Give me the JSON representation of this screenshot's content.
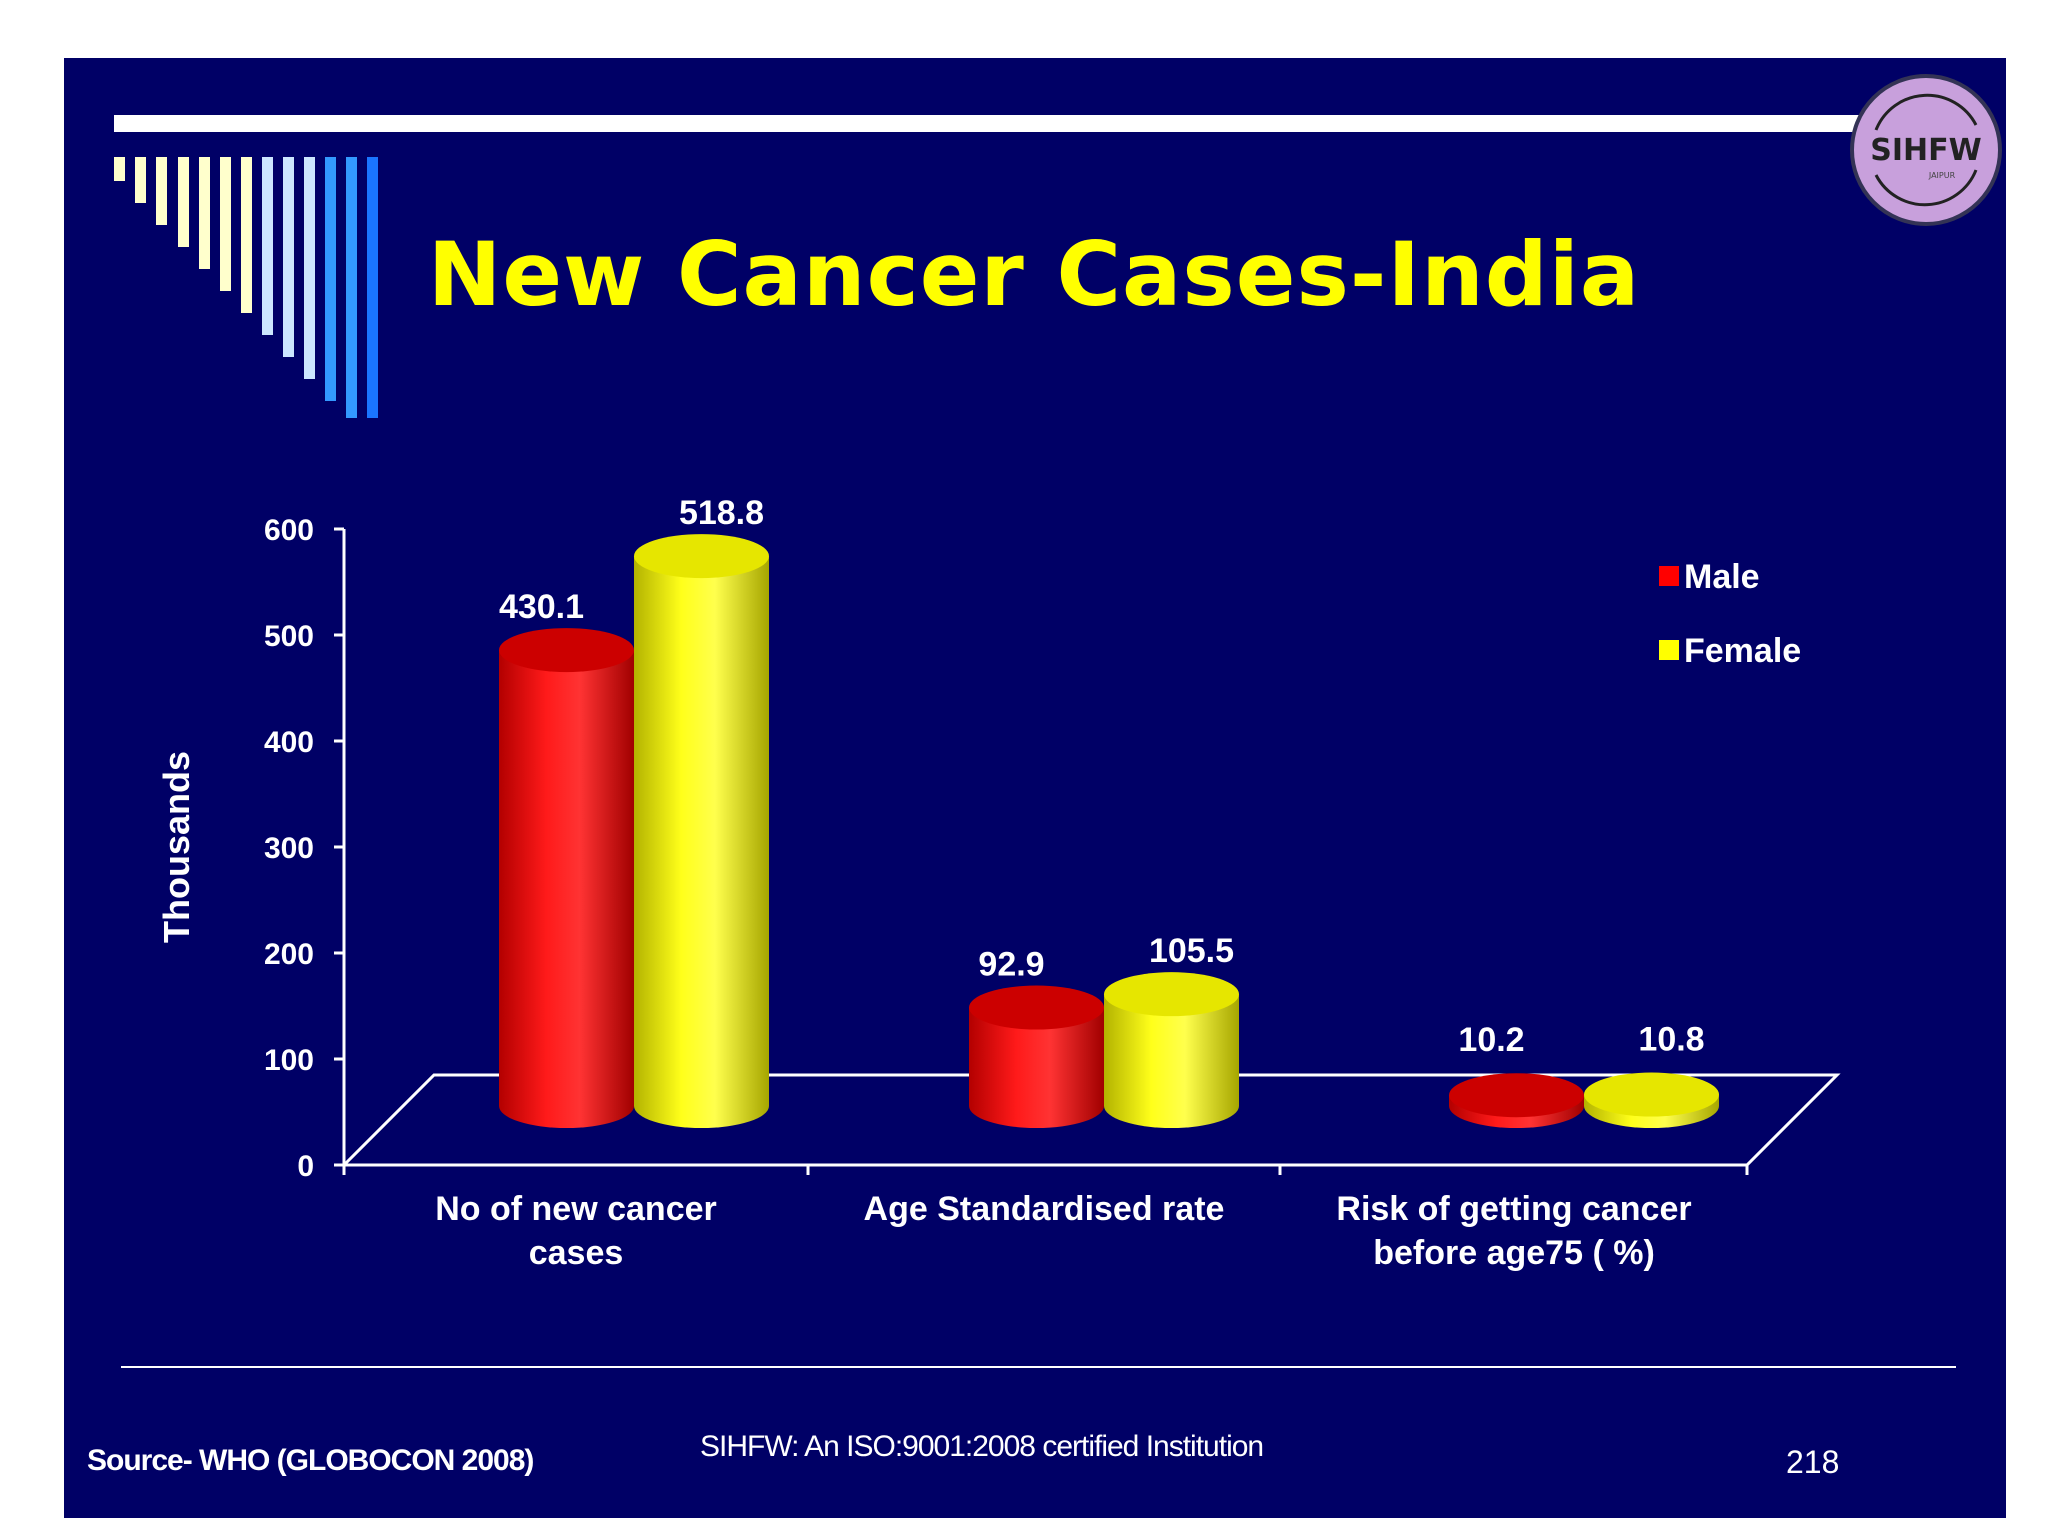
{
  "slide": {
    "title": "New Cancer Cases-India",
    "logo_text": "SIHFW",
    "logo_subtext": "JAIPUR",
    "source": "Source- WHO (GLOBOCON 2008)",
    "institution_note": "SIHFW: An ISO:9001:2008 certified Institution",
    "page_number": "218",
    "colors": {
      "background": "#000066",
      "title": "#ffff00",
      "male": "#ff0000",
      "female": "#ffff00",
      "logo": "#c8a0dc"
    }
  },
  "chart_data": {
    "type": "bar",
    "style": "3d-cylinder",
    "title": "",
    "ylabel": "Thousands",
    "xlabel": "",
    "ylim": [
      0,
      600
    ],
    "yticks": [
      0,
      100,
      200,
      300,
      400,
      500,
      600
    ],
    "categories": [
      [
        "No of new  cancer",
        "cases"
      ],
      [
        "Age Standardised rate"
      ],
      [
        "Risk of getting cancer",
        "before age75 ( %)"
      ]
    ],
    "series": [
      {
        "name": "Male",
        "color": "#ff0000",
        "values": [
          430.1,
          92.9,
          10.2
        ],
        "labels": [
          "430.1",
          "92.9",
          "10.2"
        ]
      },
      {
        "name": "Female",
        "color": "#ffff00",
        "values": [
          518.8,
          105.5,
          10.8
        ],
        "labels": [
          "518.8",
          "105.5",
          "10.8"
        ]
      }
    ],
    "legend_position": "top-right",
    "grid": false
  }
}
